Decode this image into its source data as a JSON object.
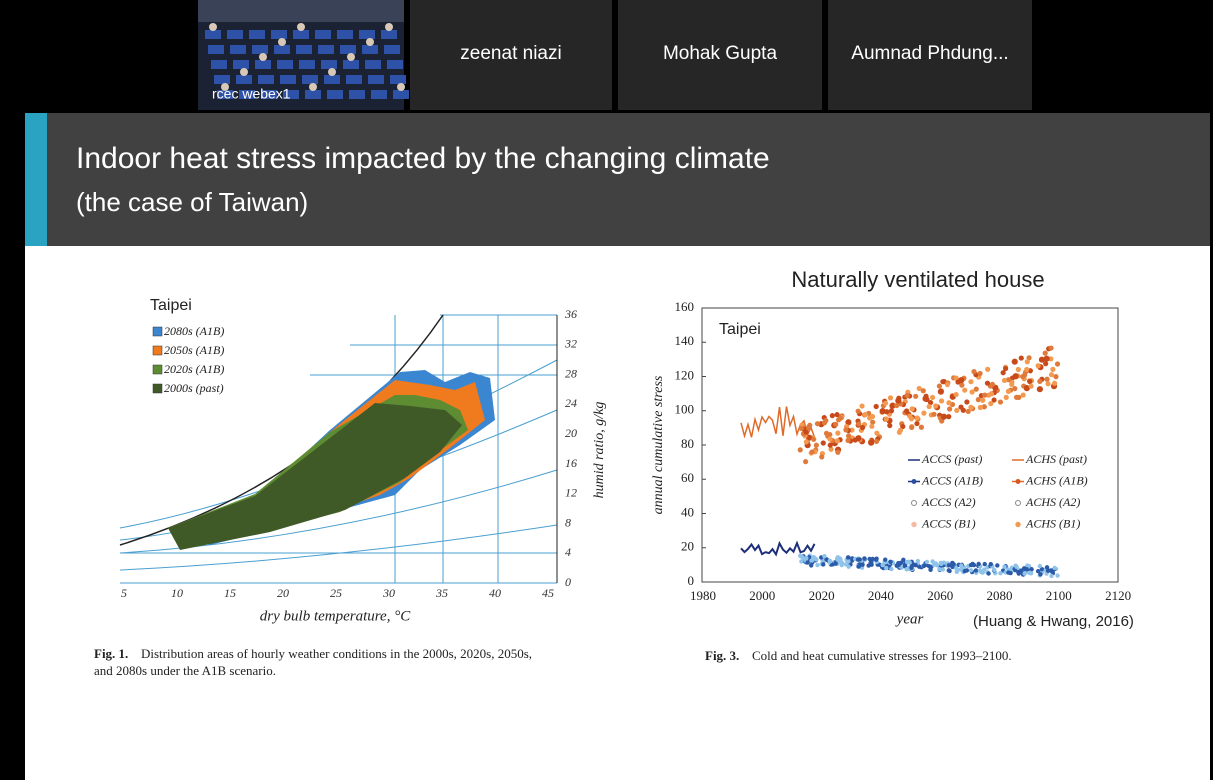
{
  "meeting": {
    "participants": [
      {
        "name": "rcec webex1"
      },
      {
        "name": "zeenat niazi"
      },
      {
        "name": "Mohak Gupta"
      },
      {
        "name": "Aumnad Phdung..."
      }
    ]
  },
  "slide": {
    "title": "Indoor heat stress impacted by the changing climate",
    "subtitle": "(the case of Taiwan)",
    "left_figure": {
      "label": "Taipei",
      "legend": [
        "2080s (A1B)",
        "2050s (A1B)",
        "2020s (A1B)",
        "2000s (past)"
      ],
      "x_ticks": [
        5,
        10,
        15,
        20,
        25,
        30,
        35,
        40,
        45
      ],
      "y_ticks": [
        36,
        32,
        28,
        24,
        20,
        16,
        12,
        8,
        4,
        0
      ],
      "x_label": "dry bulb temperature, °C",
      "y_label": "humid ratio, g/kg",
      "caption_bold": "Fig. 1.",
      "caption_lines": [
        "Distribution areas of hourly weather conditions in the 2000s, 2020s, 2050s,",
        "and 2080s under the A1B scenario."
      ]
    },
    "right_figure": {
      "heading": "Naturally ventilated house",
      "label": "Taipei",
      "y_label": "annual cumulative stress",
      "x_label": "year",
      "x_ticks": [
        1980,
        2000,
        2020,
        2040,
        2060,
        2080,
        2100,
        2120
      ],
      "y_ticks": [
        160,
        140,
        120,
        100,
        80,
        60,
        40,
        20,
        0
      ],
      "legend": [
        "ACCS (past)",
        "ACHS (past)",
        "ACCS (A1B)",
        "ACHS (A1B)",
        "ACCS (A2)",
        "ACHS (A2)",
        "ACCS (B1)",
        "ACHS (B1)"
      ],
      "source": "(Huang & Hwang, 2016)",
      "caption_bold": "Fig. 3.",
      "caption": "Cold and heat cumulative stresses for 1993–2100."
    }
  }
}
